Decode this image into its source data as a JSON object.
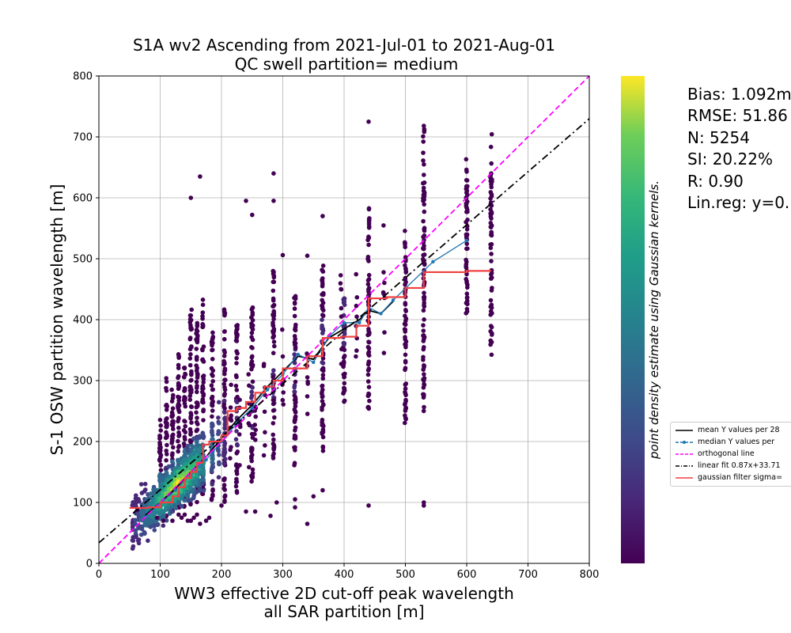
{
  "chart_data": {
    "type": "scatter",
    "title": "S1A wv2 Ascending from 2021-Jul-01 to 2021-Aug-01",
    "subtitle": "QC swell partition= medium",
    "xlabel_line1": "WW3 effective 2D cut-off peak wavelength",
    "xlabel_line2": "all SAR partition [m]",
    "ylabel": "S-1 OSW partition wavelength [m]",
    "xlim": [
      0,
      800
    ],
    "ylim": [
      0,
      800
    ],
    "xticks": [
      "0",
      "100",
      "200",
      "300",
      "400",
      "500",
      "600",
      "700",
      "800"
    ],
    "yticks": [
      "0",
      "100",
      "200",
      "300",
      "400",
      "500",
      "600",
      "700",
      "800"
    ],
    "grid": true,
    "colorbar_label": "point density estimate using Gaussian kernels.",
    "colormap": "viridis",
    "x_columns": [
      55,
      60,
      65,
      70,
      75,
      80,
      85,
      90,
      95,
      100,
      105,
      110,
      115,
      120,
      125,
      130,
      135,
      140,
      145,
      150,
      155,
      160,
      165,
      170,
      185,
      195,
      205,
      215,
      230,
      245,
      255,
      270,
      285,
      300,
      320,
      340,
      365,
      395,
      420,
      440,
      465,
      500,
      530,
      600,
      640
    ],
    "scatter_columns": [
      {
        "x": 100,
        "y_lo": 70,
        "y_hi": 240,
        "d": 0.9
      },
      {
        "x": 110,
        "y_lo": 75,
        "y_hi": 305,
        "d": 0.95
      },
      {
        "x": 120,
        "y_lo": 80,
        "y_hi": 290,
        "d": 1.0
      },
      {
        "x": 130,
        "y_lo": 85,
        "y_hi": 345,
        "d": 1.0
      },
      {
        "x": 140,
        "y_lo": 90,
        "y_hi": 330,
        "d": 0.95
      },
      {
        "x": 150,
        "y_lo": 95,
        "y_hi": 420,
        "d": 0.85
      },
      {
        "x": 160,
        "y_lo": 100,
        "y_hi": 400,
        "d": 0.8
      },
      {
        "x": 170,
        "y_lo": 110,
        "y_hi": 440,
        "d": 0.7
      },
      {
        "x": 185,
        "y_lo": 100,
        "y_hi": 380,
        "d": 0.55
      },
      {
        "x": 205,
        "y_lo": 100,
        "y_hi": 440,
        "d": 0.45
      },
      {
        "x": 225,
        "y_lo": 110,
        "y_hi": 400,
        "d": 0.35
      },
      {
        "x": 250,
        "y_lo": 130,
        "y_hi": 440,
        "d": 0.3
      },
      {
        "x": 285,
        "y_lo": 150,
        "y_hi": 480,
        "d": 0.3
      },
      {
        "x": 320,
        "y_lo": 160,
        "y_hi": 440,
        "d": 0.25
      },
      {
        "x": 365,
        "y_lo": 170,
        "y_hi": 500,
        "d": 0.3
      },
      {
        "x": 400,
        "y_lo": 260,
        "y_hi": 440,
        "d": 0.2
      },
      {
        "x": 440,
        "y_lo": 250,
        "y_hi": 590,
        "d": 0.15
      },
      {
        "x": 500,
        "y_lo": 230,
        "y_hi": 530,
        "d": 0.12
      },
      {
        "x": 530,
        "y_lo": 250,
        "y_hi": 720,
        "d": 0.1
      },
      {
        "x": 600,
        "y_lo": 410,
        "y_hi": 640,
        "d": 0.05
      },
      {
        "x": 640,
        "y_lo": 340,
        "y_hi": 640,
        "d": 0.05
      }
    ],
    "outliers": [
      [
        63,
        88
      ],
      [
        95,
        75
      ],
      [
        105,
        70
      ],
      [
        120,
        70
      ],
      [
        130,
        80
      ],
      [
        135,
        75
      ],
      [
        140,
        80
      ],
      [
        145,
        70
      ],
      [
        150,
        70
      ],
      [
        155,
        75
      ],
      [
        160,
        80
      ],
      [
        165,
        65
      ],
      [
        175,
        70
      ],
      [
        180,
        75
      ],
      [
        200,
        95
      ],
      [
        240,
        85
      ],
      [
        255,
        85
      ],
      [
        280,
        78
      ],
      [
        290,
        100
      ],
      [
        320,
        105
      ],
      [
        350,
        110
      ],
      [
        365,
        120
      ],
      [
        440,
        95
      ],
      [
        530,
        100
      ],
      [
        530,
        95
      ],
      [
        340,
        65
      ],
      [
        320,
        92
      ],
      [
        150,
        600
      ],
      [
        165,
        635
      ],
      [
        240,
        595
      ],
      [
        250,
        572
      ],
      [
        285,
        640
      ],
      [
        285,
        595
      ],
      [
        300,
        506
      ],
      [
        340,
        505
      ],
      [
        365,
        570
      ],
      [
        440,
        725
      ],
      [
        530,
        718
      ],
      [
        600,
        643
      ],
      [
        640,
        640
      ]
    ],
    "series": [
      {
        "name": "mean Y values per 28",
        "color": "#000000",
        "style": "solid",
        "x": [
          75,
          100,
          125,
          150,
          175,
          200,
          225,
          250,
          275,
          300,
          325,
          350,
          375,
          400,
          425,
          440,
          460,
          480
        ],
        "y": [
          78,
          100,
          123,
          150,
          175,
          205,
          235,
          260,
          290,
          315,
          340,
          335,
          370,
          385,
          400,
          415,
          410,
          430
        ]
      },
      {
        "name": "median Y values per",
        "color": "#1f77b4",
        "style": "dot-line",
        "x": [
          75,
          100,
          125,
          150,
          175,
          200,
          225,
          250,
          275,
          300,
          325,
          350,
          375,
          400,
          425,
          440,
          460,
          480,
          545,
          600
        ],
        "y": [
          76,
          98,
          120,
          145,
          170,
          200,
          230,
          255,
          285,
          310,
          343,
          330,
          372,
          395,
          395,
          420,
          410,
          432,
          495,
          530
        ]
      },
      {
        "name": "orthogonal line",
        "color": "#ff00ff",
        "style": "dashed",
        "x": [
          0,
          800
        ],
        "y": [
          0,
          800
        ]
      },
      {
        "name": "linear fit 0.87x+33.71",
        "color": "#000000",
        "style": "dashdot",
        "x": [
          0,
          800
        ],
        "y": [
          33.71,
          729.71
        ]
      },
      {
        "name": "gaussian filter sigma=",
        "color": "#f04040",
        "style": "step",
        "x": [
          50,
          80,
          100,
          120,
          130,
          140,
          150,
          160,
          170,
          180,
          200,
          210,
          225,
          240,
          255,
          270,
          285,
          300,
          320,
          340,
          365,
          395,
          420,
          440,
          470,
          500,
          530,
          600,
          640
        ],
        "y": [
          91,
          92,
          100,
          110,
          125,
          140,
          150,
          165,
          195,
          200,
          210,
          250,
          255,
          265,
          280,
          290,
          300,
          320,
          320,
          340,
          370,
          372,
          390,
          435,
          437,
          452,
          478,
          480,
          480
        ]
      }
    ]
  },
  "stats": {
    "bias": "Bias: 1.092m",
    "rmse": "RMSE: 51.86",
    "n": "N: 5254",
    "si": "SI: 20.22%",
    "r": "R: 0.90",
    "linreg": "Lin.reg: y=0."
  },
  "legend": [
    {
      "label": "mean Y values per 28",
      "color": "#000000",
      "style": "solid"
    },
    {
      "label": "median Y values per",
      "color": "#1f77b4",
      "style": "dot-line"
    },
    {
      "label": "orthogonal line",
      "color": "#ff00ff",
      "style": "dashed"
    },
    {
      "label": "linear fit 0.87x+33.71",
      "color": "#000000",
      "style": "dashdot"
    },
    {
      "label": "gaussian filter sigma=",
      "color": "#f04040",
      "style": "solid"
    }
  ]
}
